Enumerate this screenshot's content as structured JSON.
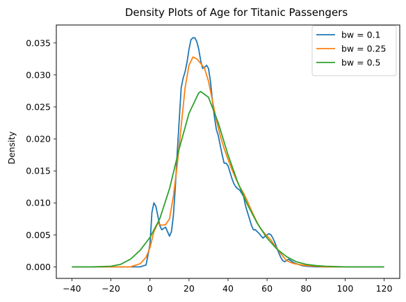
{
  "chart_data": {
    "type": "line",
    "title": "Density Plots of Age for Titanic Passengers",
    "xlabel": "",
    "ylabel": "Density",
    "xlim": [
      -48,
      128
    ],
    "ylim": [
      -0.0018,
      0.0378
    ],
    "xticks": [
      -40,
      -20,
      0,
      20,
      40,
      60,
      80,
      100,
      120
    ],
    "yticks": [
      0.0,
      0.005,
      0.01,
      0.015,
      0.02,
      0.025,
      0.03,
      0.035
    ],
    "ytick_labels": [
      "0.000",
      "0.005",
      "0.010",
      "0.015",
      "0.020",
      "0.025",
      "0.030",
      "0.035"
    ],
    "grid": false,
    "legend_position": "top-right",
    "series": [
      {
        "name": "bw = 0.1",
        "color": "#1f77b4",
        "x": [
          -40,
          -20,
          -10,
          -5,
          -2,
          0,
          1,
          2,
          3,
          4,
          5,
          6,
          7,
          8,
          9,
          10,
          11,
          12,
          13,
          14,
          15,
          16,
          17,
          18,
          19,
          20,
          21,
          22,
          23,
          24,
          25,
          26,
          27,
          28,
          29,
          30,
          31,
          32,
          33,
          34,
          35,
          36,
          37,
          38,
          39,
          40,
          41,
          42,
          43,
          44,
          45,
          46,
          47,
          48,
          49,
          50,
          51,
          52,
          53,
          54,
          55,
          56,
          57,
          58,
          59,
          60,
          61,
          62,
          63,
          64,
          65,
          66,
          67,
          68,
          69,
          70,
          71,
          72,
          73,
          74,
          75,
          76,
          78,
          80,
          85,
          90,
          100,
          120
        ],
        "y": [
          0.0,
          0.0,
          0.0,
          0.0,
          0.0003,
          0.0035,
          0.0085,
          0.01,
          0.0095,
          0.008,
          0.0065,
          0.0058,
          0.006,
          0.0062,
          0.0055,
          0.0048,
          0.0055,
          0.008,
          0.0125,
          0.018,
          0.023,
          0.028,
          0.0295,
          0.0305,
          0.032,
          0.034,
          0.0355,
          0.0358,
          0.0358,
          0.0352,
          0.034,
          0.0322,
          0.031,
          0.0312,
          0.0315,
          0.031,
          0.029,
          0.026,
          0.0235,
          0.0215,
          0.0205,
          0.019,
          0.0175,
          0.0162,
          0.0162,
          0.0158,
          0.0148,
          0.0138,
          0.013,
          0.0125,
          0.0122,
          0.012,
          0.0115,
          0.011,
          0.0095,
          0.0085,
          0.0075,
          0.0065,
          0.0058,
          0.0058,
          0.0055,
          0.0052,
          0.0048,
          0.0045,
          0.0048,
          0.005,
          0.0052,
          0.005,
          0.0045,
          0.0038,
          0.003,
          0.0022,
          0.0015,
          0.001,
          0.0008,
          0.001,
          0.0012,
          0.001,
          0.0008,
          0.0006,
          0.0005,
          0.0004,
          0.0002,
          0.0001,
          0.0,
          0.0,
          0.0,
          0.0
        ]
      },
      {
        "name": "bw = 0.25",
        "color": "#ff7f0e",
        "x": [
          -40,
          -20,
          -10,
          -5,
          -2,
          0,
          2,
          4,
          6,
          8,
          10,
          12,
          14,
          16,
          18,
          20,
          22,
          24,
          26,
          28,
          30,
          32,
          34,
          36,
          38,
          40,
          42,
          44,
          46,
          48,
          50,
          52,
          54,
          56,
          58,
          60,
          62,
          64,
          66,
          68,
          70,
          72,
          74,
          76,
          80,
          85,
          90,
          100,
          120
        ],
        "y": [
          0.0,
          0.0,
          0.0,
          0.0005,
          0.0015,
          0.003,
          0.0055,
          0.0068,
          0.0065,
          0.0066,
          0.0075,
          0.011,
          0.016,
          0.022,
          0.028,
          0.0315,
          0.0328,
          0.0325,
          0.0318,
          0.031,
          0.029,
          0.026,
          0.023,
          0.0205,
          0.0185,
          0.0168,
          0.0152,
          0.0138,
          0.0125,
          0.0115,
          0.0102,
          0.0088,
          0.0075,
          0.0063,
          0.0055,
          0.0048,
          0.0042,
          0.0033,
          0.0025,
          0.0017,
          0.001,
          0.0007,
          0.0005,
          0.0004,
          0.0002,
          0.0001,
          0.0,
          0.0,
          0.0
        ]
      },
      {
        "name": "bw = 0.5",
        "color": "#2ca02c",
        "x": [
          -40,
          -30,
          -20,
          -15,
          -10,
          -5,
          0,
          5,
          10,
          15,
          20,
          25,
          26,
          30,
          35,
          40,
          45,
          50,
          55,
          60,
          65,
          70,
          75,
          80,
          85,
          90,
          100,
          120
        ],
        "y": [
          0.0,
          0.0,
          0.0001,
          0.0004,
          0.0012,
          0.0026,
          0.0046,
          0.0075,
          0.0122,
          0.0185,
          0.024,
          0.0272,
          0.0274,
          0.0265,
          0.0225,
          0.0175,
          0.0132,
          0.0097,
          0.0068,
          0.0045,
          0.0028,
          0.0016,
          0.0008,
          0.0004,
          0.0002,
          0.0001,
          0.0,
          0.0
        ]
      }
    ]
  }
}
